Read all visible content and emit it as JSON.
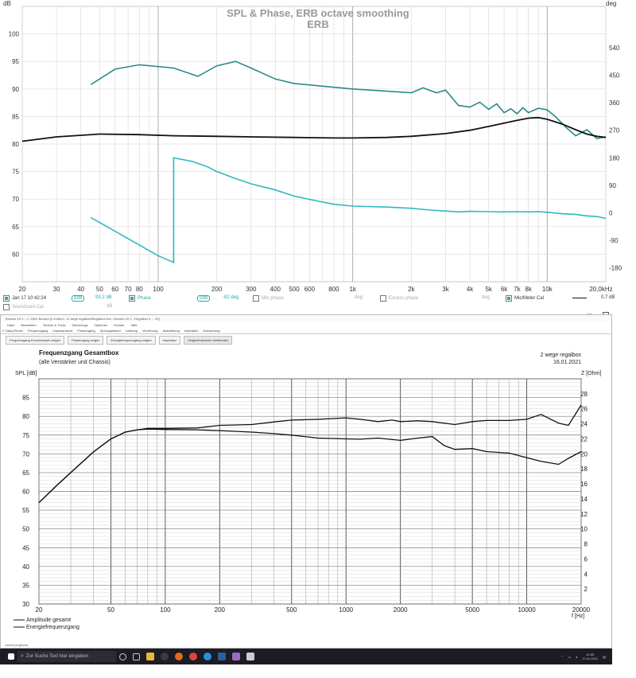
{
  "top_chart": {
    "title_line1": "SPL & Phase, ERB octave smoothing",
    "title_line2": "ERB",
    "left_unit": "dB",
    "right_unit": "deg",
    "y_ticks": [
      "100",
      "95",
      "90",
      "85",
      "80",
      "75",
      "70",
      "65",
      "60"
    ],
    "y_right_ticks": [
      "540",
      "450",
      "360",
      "270",
      "180",
      "90",
      "0",
      "-90",
      "-180"
    ],
    "x_ticks": [
      "20",
      "30",
      "40",
      "50",
      "60",
      "70",
      "80",
      "100",
      "200",
      "300",
      "400",
      "500",
      "600",
      "800",
      "1k",
      "2k",
      "3k",
      "4k",
      "5k",
      "6k",
      "7k",
      "8k",
      "10k",
      "20,0kHz"
    ]
  },
  "legend": {
    "item1_date": "Jan 17 10:42:24",
    "item1_chip": "ERB",
    "item1_value": "93,2 dB",
    "item2_label": "Phase",
    "item2_chip": "ERB",
    "item2_value": "-82 deg",
    "item3_label": "Min phase",
    "item3_unit": "deg",
    "item4_label": "Excess phase",
    "item4_unit": "deg",
    "item5_label": "Mic/Meter Cal",
    "item5_value": "0,7 dB",
    "row2_label": "Soundcard Cal",
    "row2_unit": "dB"
  },
  "window": {
    "title": "Boxsim V2.1 - 1 / 2001 Boxsim [C:\\Users\\...\\2 wege regalbox\\Regalbox.bxs - Boxsim V2.1 - Regalbox 4 ... 20]",
    "menu": [
      "Datei",
      "Bearbeiten",
      "Technik & Tricks",
      "Werkzeuge",
      "Optionen",
      "Fenster",
      "Hilfe"
    ],
    "tabs": [
      "F-Gang Einzel",
      "Frequenzgang",
      "Impulsantwort",
      "Phasengang",
      "Sprungantwort",
      "Leistung",
      "Verzerrung",
      "Abstrahlung",
      "Impedanz",
      "Auswertung"
    ],
    "toolbar": [
      "Frequenzgang Einzelchassis zeigen",
      "Phasengang zeigen",
      "Energiefrequenzgang zeigen",
      "Impedanz",
      "Vergleichskurven einblenden"
    ]
  },
  "bottom_chart": {
    "title": "Frequenzgang Gesamtbox",
    "subtitle": "(alle Verstärker und Chassis)",
    "right_title": "2 wege regalbox",
    "date": "16.01.2021",
    "y_label": "SPL [dB]",
    "y2_label": "Z [Ohm]",
    "x_label": "f [Hz]",
    "y_ticks": [
      "85",
      "80",
      "75",
      "70",
      "65",
      "60",
      "55",
      "50",
      "45",
      "40",
      "35",
      "30"
    ],
    "y2_ticks": [
      "28",
      "26",
      "24",
      "22",
      "20",
      "18",
      "16",
      "14",
      "12",
      "10",
      "8",
      "6",
      "4",
      "2"
    ],
    "x_ticks": [
      "20",
      "50",
      "100",
      "200",
      "500",
      "1000",
      "2000",
      "5000",
      "10000",
      "20000"
    ],
    "legend1": "Amplitude gesamt",
    "legend2": "Energiefrequenzgang"
  },
  "statusbar": "bereit (englisch)",
  "taskbar": {
    "search_placeholder": "Zur Suche Text hier eingeben",
    "time": "10:05",
    "date": "17.01.2021"
  },
  "chart_data": [
    {
      "type": "line",
      "title": "SPL & Phase, ERB octave smoothing",
      "subtitle": "ERB",
      "xscale": "log",
      "xlim": [
        20,
        20000
      ],
      "ylim": [
        55,
        105
      ],
      "y2lim": [
        -225,
        675
      ],
      "series": [
        {
          "name": "ERB",
          "axis": "left",
          "color": "#2a8a88",
          "x": [
            45,
            60,
            80,
            120,
            160,
            200,
            250,
            300,
            400,
            500,
            700,
            1000,
            1500,
            2000,
            2300,
            2700,
            3000,
            3500,
            4000,
            4500,
            5000,
            5500,
            6000,
            6500,
            7000,
            7500,
            8000,
            9000,
            10000,
            11000,
            12500,
            14000,
            16000,
            18000,
            20000
          ],
          "y": [
            90.8,
            93.6,
            94.4,
            93.8,
            92.3,
            94.2,
            95.0,
            93.8,
            91.8,
            91.0,
            90.5,
            90.0,
            89.6,
            89.3,
            90.2,
            89.3,
            89.8,
            87.0,
            86.7,
            87.6,
            86.3,
            87.3,
            85.7,
            86.4,
            85.5,
            86.6,
            85.7,
            86.5,
            86.2,
            85.0,
            83.0,
            81.5,
            82.6,
            81.0,
            81.3
          ]
        },
        {
          "name": "Mic/Meter Cal",
          "axis": "left",
          "color": "#111111",
          "x": [
            20,
            30,
            50,
            80,
            120,
            200,
            300,
            500,
            800,
            1000,
            1500,
            2000,
            3000,
            4000,
            5000,
            6000,
            7000,
            8000,
            9000,
            10000,
            12000,
            14000,
            16000,
            18000,
            20000
          ],
          "y": [
            80.5,
            81.3,
            81.8,
            81.7,
            81.5,
            81.4,
            81.3,
            81.2,
            81.1,
            81.1,
            81.2,
            81.4,
            81.9,
            82.5,
            83.2,
            83.8,
            84.3,
            84.7,
            84.8,
            84.5,
            83.6,
            82.6,
            81.8,
            81.4,
            81.2
          ]
        },
        {
          "name": "Phase",
          "axis": "right",
          "color": "#30b8c0",
          "x": [
            45,
            60,
            80,
            100,
            120,
            120,
            150,
            180,
            200,
            250,
            300,
            400,
            500,
            600,
            800,
            1000,
            1500,
            2000,
            2500,
            3000,
            3500,
            4000,
            5000,
            6000,
            7000,
            8000,
            9000,
            10000,
            12000,
            14000,
            16000,
            18000,
            20000
          ],
          "y": [
            -15,
            -60,
            -105,
            -140,
            -162,
            180,
            168,
            150,
            135,
            112,
            95,
            75,
            55,
            44,
            28,
            22,
            19,
            15,
            9,
            6,
            3,
            5,
            4,
            3,
            4,
            3,
            4,
            2,
            -3,
            -5,
            -10,
            -12,
            -18
          ]
        }
      ]
    },
    {
      "type": "line",
      "title": "Frequenzgang Gesamtbox",
      "xscale": "log",
      "xlim": [
        20,
        20000
      ],
      "ylim": [
        30,
        90
      ],
      "series": [
        {
          "name": "Amplitude gesamt",
          "color": "#111111",
          "x": [
            20,
            25,
            30,
            40,
            50,
            60,
            70,
            80,
            100,
            150,
            200,
            300,
            400,
            500,
            700,
            1000,
            1200,
            1500,
            1800,
            2000,
            2500,
            3000,
            4000,
            5000,
            6000,
            8000,
            10000,
            12000,
            15000,
            17000,
            20000
          ],
          "y": [
            57.0,
            61.5,
            65.0,
            70.5,
            74.0,
            75.8,
            76.4,
            76.8,
            76.8,
            76.9,
            77.6,
            77.8,
            78.5,
            79.0,
            79.2,
            79.6,
            79.2,
            78.6,
            79.0,
            78.6,
            78.8,
            78.6,
            77.8,
            78.6,
            78.9,
            78.9,
            79.2,
            80.5,
            78.2,
            77.6,
            83.0
          ]
        },
        {
          "name": "Energiefrequenzgang",
          "color": "#111111",
          "x": [
            20,
            25,
            30,
            40,
            50,
            60,
            70,
            80,
            100,
            150,
            200,
            300,
            400,
            500,
            700,
            1000,
            1200,
            1500,
            2000,
            2500,
            3000,
            3500,
            4000,
            5000,
            6000,
            8000,
            10000,
            12000,
            15000,
            17000,
            20000
          ],
          "y": [
            57.0,
            61.5,
            65.0,
            70.5,
            74.0,
            75.8,
            76.4,
            76.6,
            76.5,
            76.4,
            76.2,
            75.8,
            75.4,
            75.0,
            74.2,
            74.0,
            73.9,
            74.2,
            73.6,
            74.2,
            74.6,
            72.2,
            71.2,
            71.4,
            70.6,
            70.2,
            69.0,
            68.0,
            67.2,
            68.8,
            70.6
          ]
        }
      ]
    }
  ]
}
